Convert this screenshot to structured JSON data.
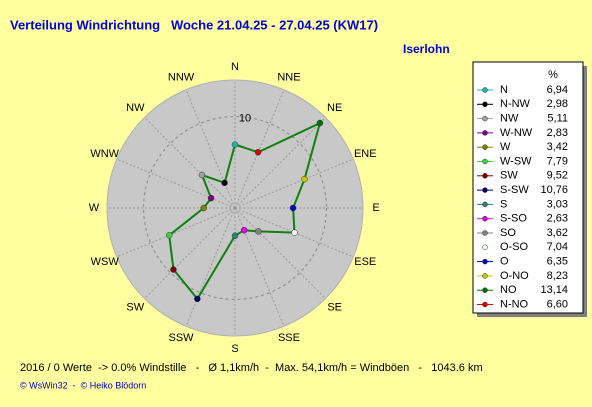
{
  "chart_data": {
    "type": "radar",
    "title": "Verteilung Windrichtung   Woche 21.04.25 - 27.04.25 (KW17)",
    "subtitle": "Iserlohn",
    "unit_label": "%",
    "categories": [
      "N",
      "NNE",
      "NE",
      "ENE",
      "E",
      "ESE",
      "SE",
      "SSE",
      "S",
      "SSW",
      "SW",
      "WSW",
      "W",
      "WNW",
      "NW",
      "NNW"
    ],
    "legend_names": [
      "N",
      "N-NO",
      "NO",
      "O-NO",
      "O",
      "O-SO",
      "SO",
      "S-SO",
      "S",
      "S-SW",
      "SW",
      "W-SW",
      "W",
      "W-NW",
      "NW",
      "N-NW"
    ],
    "values": [
      6.94,
      6.6,
      13.14,
      8.23,
      6.35,
      7.04,
      3.62,
      2.63,
      3.03,
      10.76,
      9.52,
      7.79,
      3.42,
      2.83,
      5.11,
      2.98
    ],
    "value_labels": [
      "6,94",
      "6,60",
      "13,14",
      "8,23",
      "6,35",
      "7,04",
      "3,62",
      "2,63",
      "3,03",
      "10,76",
      "9,52",
      "7,79",
      "3,42",
      "2,83",
      "5,11",
      "2,98"
    ],
    "colors": [
      "#20b0b0",
      "#e00000",
      "#007000",
      "#c8c800",
      "#0000c0",
      "#f0fff0",
      "#808080",
      "#e000e0",
      "#308080",
      "#000060",
      "#800000",
      "#40d040",
      "#808000",
      "#800080",
      "#a0a0a0",
      "#000000"
    ],
    "line_color": "#108010",
    "rlim": [
      0,
      14
    ],
    "rticks": [
      10
    ],
    "footer": "2016 / 0 Werte  -> 0.0% Windstille   -   Ø 1,1km/h  -  Max. 54,1km/h = Windböen   -   1043.6 km",
    "credit": "© WsWin32  -  © Heiko Blödorn"
  }
}
